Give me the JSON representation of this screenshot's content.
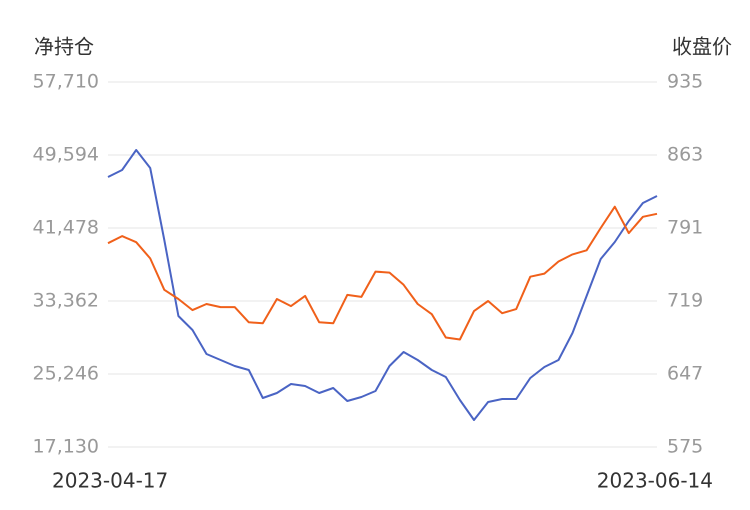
{
  "chart_data": {
    "type": "line",
    "y_label": "净持仓",
    "y2_label": "收盘价",
    "categories": [
      "2023-04-17",
      null,
      null,
      null,
      null,
      null,
      null,
      null,
      null,
      null,
      null,
      null,
      null,
      null,
      null,
      null,
      null,
      null,
      null,
      null,
      null,
      null,
      null,
      null,
      null,
      null,
      null,
      null,
      null,
      null,
      null,
      null,
      null,
      null,
      null,
      null,
      null,
      null,
      null,
      "2023-06-14"
    ],
    "ylim": [
      17130,
      57710
    ],
    "yticks": [
      {
        "value": 17130,
        "label": "17,130"
      },
      {
        "value": 25246,
        "label": "25,246"
      },
      {
        "value": 33362,
        "label": "33,362"
      },
      {
        "value": 41478,
        "label": "41,478"
      },
      {
        "value": 49594,
        "label": "49,594"
      },
      {
        "value": 57710,
        "label": "57,710"
      }
    ],
    "y2lim": [
      575,
      935
    ],
    "y2ticks": [
      575,
      647,
      719,
      791,
      863,
      935
    ],
    "grid": true,
    "series": [
      {
        "color": "#4a64c4",
        "values": [
          47148,
          47926,
          50150,
          48149,
          40144,
          31694,
          30137,
          27469,
          26802,
          26135,
          25690,
          22577,
          23133,
          24133,
          23911,
          23133,
          23689,
          22243,
          22688,
          23355,
          26135,
          27692,
          26802,
          25690,
          24912,
          22355,
          20131,
          22132,
          22466,
          22466,
          24801,
          26024,
          26802,
          29804,
          33918,
          38031,
          39922,
          42256,
          44258,
          45036
        ]
      },
      {
        "color": "#f0601a",
        "axis": "y2",
        "values": [
          776,
          783,
          777,
          761,
          730,
          721,
          710,
          716,
          713,
          713,
          698,
          697,
          721,
          714,
          724,
          698,
          697,
          725,
          723,
          748,
          747,
          735,
          716,
          706,
          683,
          681,
          709,
          719,
          707,
          711,
          743,
          746,
          758,
          765,
          769,
          791,
          812,
          786,
          802,
          805
        ]
      }
    ]
  }
}
